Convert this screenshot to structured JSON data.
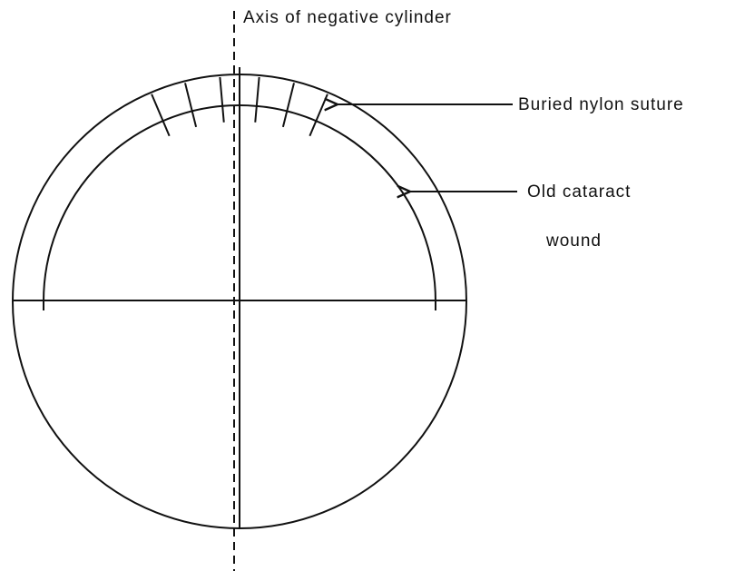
{
  "labels": {
    "axis": "Axis of negative cylinder",
    "suture": "Buried nylon suture",
    "wound_line1": "Old cataract",
    "wound_line2": "wound"
  }
}
